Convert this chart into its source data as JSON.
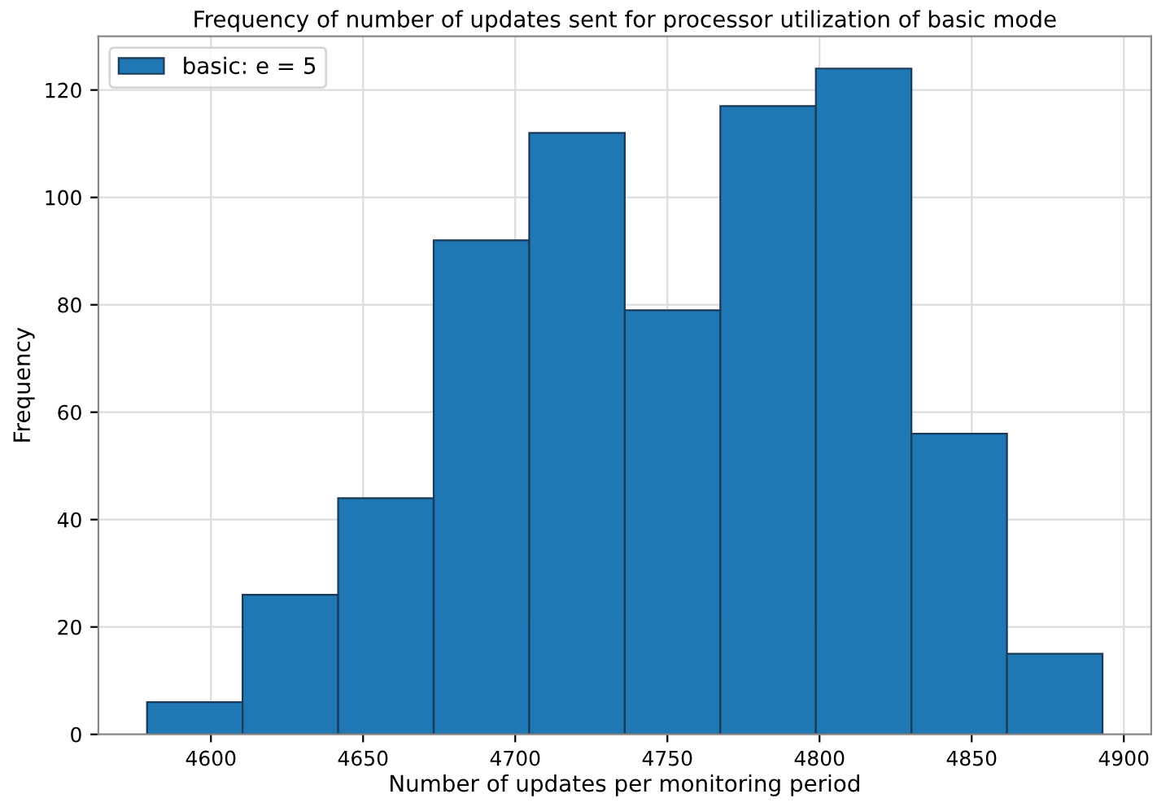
{
  "chart_data": {
    "type": "histogram",
    "title": "Frequency of number of updates sent for processor utilization of basic mode",
    "xlabel": "Number of updates per monitoring period",
    "ylabel": "Frequency",
    "bins": [
      4579,
      4610.4,
      4641.8,
      4673.2,
      4704.6,
      4736,
      4767.4,
      4798.8,
      4830.2,
      4861.6,
      4893
    ],
    "series": [
      {
        "name": "basic: e = 5",
        "color": "#1f77b4",
        "values": [
          6,
          26,
          44,
          92,
          112,
          79,
          117,
          124,
          56,
          15
        ]
      }
    ],
    "xlim": [
      4563,
      4909
    ],
    "xticks": [
      4600,
      4650,
      4700,
      4750,
      4800,
      4850,
      4900
    ],
    "ylim": [
      0,
      130
    ],
    "yticks": [
      0,
      20,
      40,
      60,
      80,
      100,
      120
    ],
    "grid": true,
    "legend": "top left"
  }
}
